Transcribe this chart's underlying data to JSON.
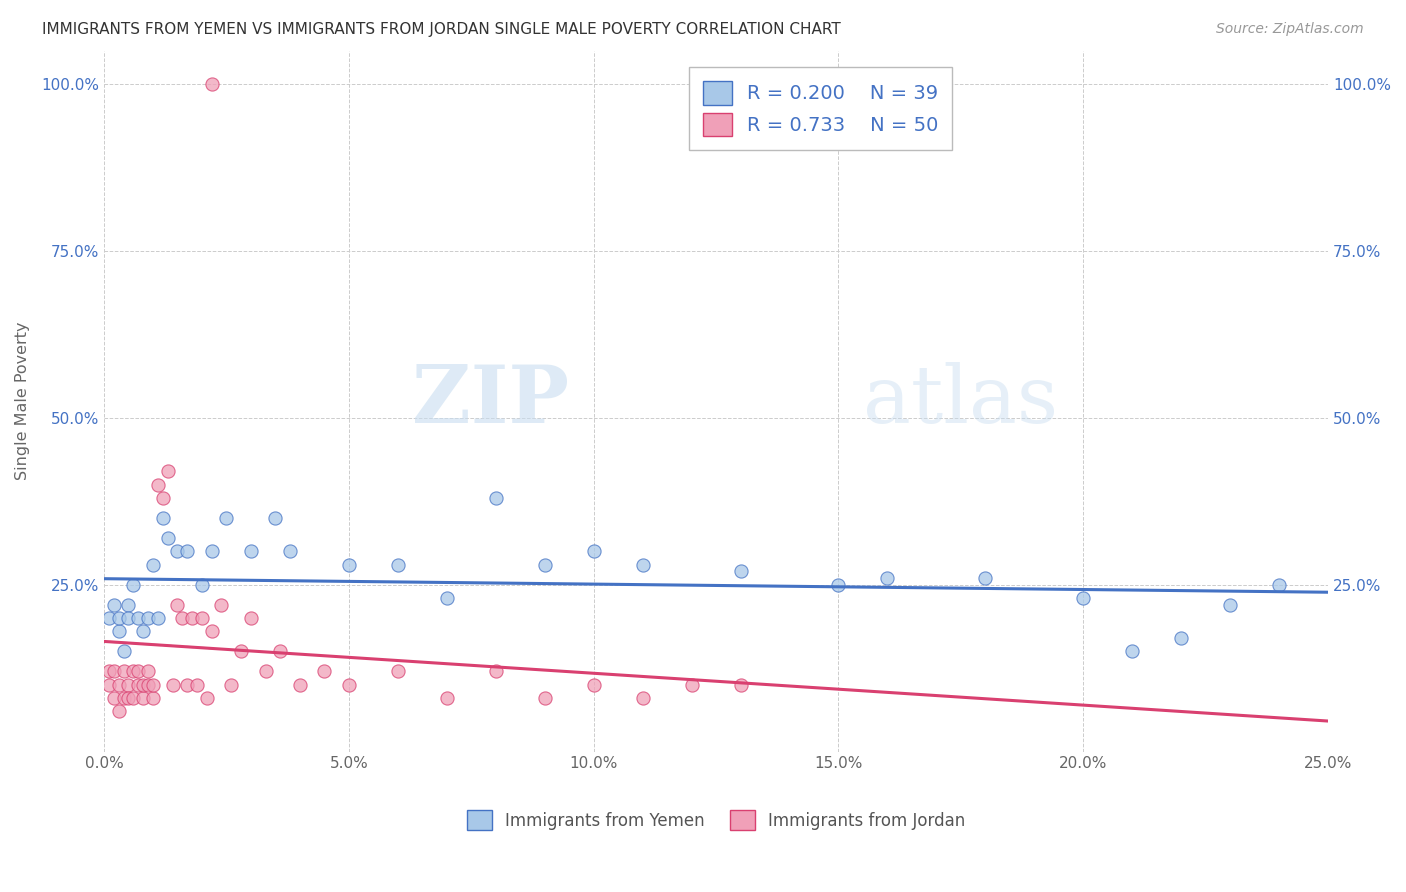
{
  "title": "IMMIGRANTS FROM YEMEN VS IMMIGRANTS FROM JORDAN SINGLE MALE POVERTY CORRELATION CHART",
  "source": "Source: ZipAtlas.com",
  "ylabel": "Single Male Poverty",
  "xlim": [
    0.0,
    0.25
  ],
  "ylim": [
    0.0,
    1.05
  ],
  "xticks": [
    0.0,
    0.05,
    0.1,
    0.15,
    0.2,
    0.25
  ],
  "yticks": [
    0.0,
    0.25,
    0.5,
    0.75,
    1.0
  ],
  "ytick_labels": [
    "",
    "25.0%",
    "50.0%",
    "75.0%",
    "100.0%"
  ],
  "xtick_labels": [
    "0.0%",
    "5.0%",
    "10.0%",
    "15.0%",
    "20.0%",
    "25.0%"
  ],
  "legend_R_yemen": "0.200",
  "legend_N_yemen": "39",
  "legend_R_jordan": "0.733",
  "legend_N_jordan": "50",
  "color_yemen": "#a8c8e8",
  "color_jordan": "#f0a0b8",
  "line_color_yemen": "#4472c4",
  "line_color_jordan": "#d94070",
  "tick_color": "#4472c4",
  "background_color": "#ffffff",
  "yemen_x": [
    0.001,
    0.002,
    0.003,
    0.003,
    0.004,
    0.005,
    0.005,
    0.006,
    0.007,
    0.008,
    0.009,
    0.01,
    0.011,
    0.012,
    0.013,
    0.015,
    0.017,
    0.02,
    0.022,
    0.025,
    0.03,
    0.035,
    0.038,
    0.05,
    0.06,
    0.07,
    0.08,
    0.09,
    0.1,
    0.11,
    0.13,
    0.15,
    0.16,
    0.18,
    0.2,
    0.21,
    0.22,
    0.23,
    0.24
  ],
  "yemen_y": [
    0.2,
    0.22,
    0.18,
    0.2,
    0.15,
    0.22,
    0.2,
    0.25,
    0.2,
    0.18,
    0.2,
    0.28,
    0.2,
    0.35,
    0.32,
    0.3,
    0.3,
    0.25,
    0.3,
    0.35,
    0.3,
    0.35,
    0.3,
    0.28,
    0.28,
    0.23,
    0.38,
    0.28,
    0.3,
    0.28,
    0.27,
    0.25,
    0.26,
    0.26,
    0.23,
    0.15,
    0.17,
    0.22,
    0.25
  ],
  "jordan_x": [
    0.001,
    0.001,
    0.002,
    0.002,
    0.003,
    0.003,
    0.004,
    0.004,
    0.005,
    0.005,
    0.006,
    0.006,
    0.007,
    0.007,
    0.008,
    0.008,
    0.009,
    0.009,
    0.01,
    0.01,
    0.011,
    0.012,
    0.013,
    0.014,
    0.015,
    0.016,
    0.017,
    0.018,
    0.019,
    0.02,
    0.021,
    0.022,
    0.024,
    0.026,
    0.028,
    0.03,
    0.033,
    0.036,
    0.04,
    0.045,
    0.05,
    0.06,
    0.07,
    0.08,
    0.09,
    0.1,
    0.11,
    0.12,
    0.13,
    0.022
  ],
  "jordan_y": [
    0.1,
    0.12,
    0.08,
    0.12,
    0.06,
    0.1,
    0.08,
    0.12,
    0.1,
    0.08,
    0.12,
    0.08,
    0.1,
    0.12,
    0.08,
    0.1,
    0.12,
    0.1,
    0.08,
    0.1,
    0.4,
    0.38,
    0.42,
    0.1,
    0.22,
    0.2,
    0.1,
    0.2,
    0.1,
    0.2,
    0.08,
    0.18,
    0.22,
    0.1,
    0.15,
    0.2,
    0.12,
    0.15,
    0.1,
    0.12,
    0.1,
    0.12,
    0.08,
    0.12,
    0.08,
    0.1,
    0.08,
    0.1,
    0.1,
    1.0
  ]
}
